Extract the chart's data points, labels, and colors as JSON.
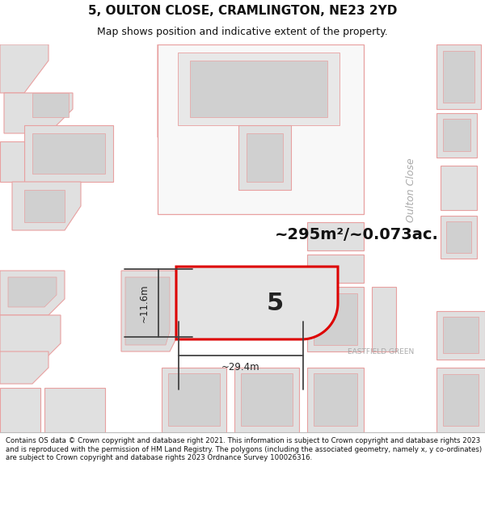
{
  "title_line1": "5, OULTON CLOSE, CRAMLINGTON, NE23 2YD",
  "title_line2": "Map shows position and indicative extent of the property.",
  "footer_text": "Contains OS data © Crown copyright and database right 2021. This information is subject to Crown copyright and database rights 2023 and is reproduced with the permission of HM Land Registry. The polygons (including the associated geometry, namely x, y co-ordinates) are subject to Crown copyright and database rights 2023 Ordnance Survey 100026316.",
  "bg_color": "#ffffff",
  "map_bg": "#ffffff",
  "building_fill": "#e0e0e0",
  "building_edge": "#e8a0a0",
  "inner_fill": "#d0d0d0",
  "highlight_fill": "#e4e4e4",
  "highlight_edge": "#dd0000",
  "street_label_1": "Oulton Close",
  "street_label_2": "EASTFIELD GREEN",
  "area_label": "~295m²/~0.073ac.",
  "number_label": "5",
  "dim_width": "~29.4m",
  "dim_height": "~11.6m"
}
